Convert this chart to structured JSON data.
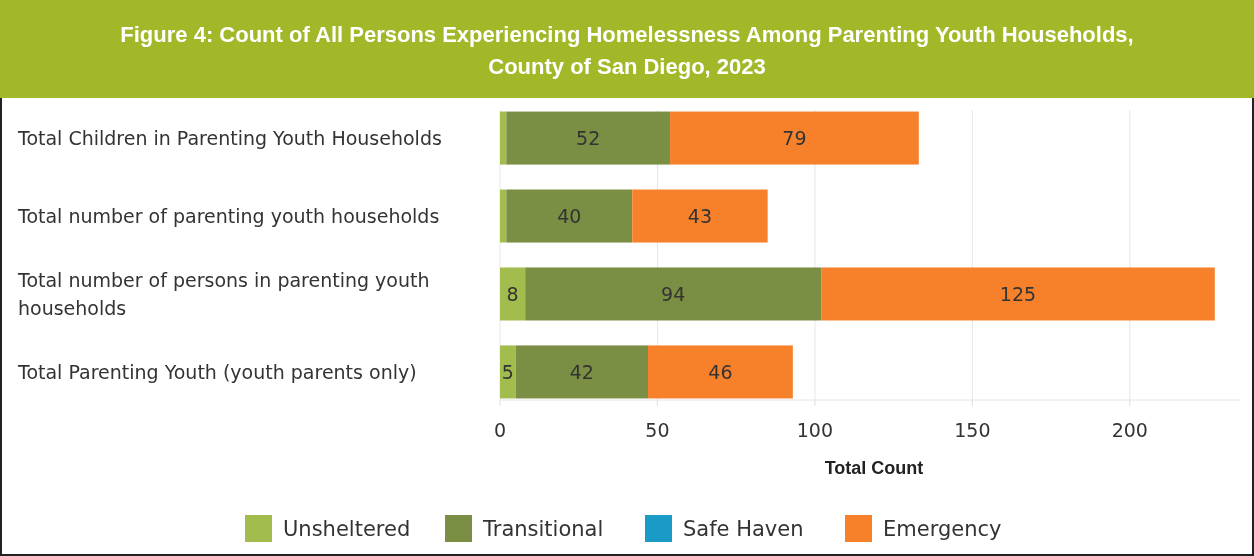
{
  "chart_data": {
    "type": "bar",
    "orientation": "horizontal",
    "stacked": true,
    "title": "Figure 4: Count of All Persons Experiencing Homelessness Among Parenting Youth Households, County of San Diego, 2023",
    "xlabel": "Total Count",
    "categories": [
      "Total Children in Parenting Youth Households",
      "Total number of parenting youth households",
      "Total number of persons in parenting youth households",
      "Total Parenting Youth (youth parents only)"
    ],
    "series": [
      {
        "name": "Unsheltered",
        "color": "#a3bc4e",
        "values": [
          2,
          2,
          8,
          5
        ],
        "value_labels": [
          null,
          null,
          "8",
          "5"
        ]
      },
      {
        "name": "Transitional",
        "color": "#7a8f43",
        "values": [
          52,
          40,
          94,
          42
        ],
        "value_labels": [
          "52",
          "40",
          "94",
          "42"
        ]
      },
      {
        "name": "Safe Haven",
        "color": "#1a9bc7",
        "values": [
          0,
          0,
          0,
          0
        ],
        "value_labels": [
          null,
          null,
          null,
          null
        ]
      },
      {
        "name": "Emergency",
        "color": "#f6812a",
        "values": [
          79,
          43,
          125,
          46
        ],
        "value_labels": [
          "79",
          "43",
          "125",
          "46"
        ]
      }
    ],
    "xlim": [
      0,
      235
    ],
    "xticks": [
      0,
      50,
      100,
      150,
      200
    ],
    "grid": "x",
    "legend": "bottom"
  }
}
